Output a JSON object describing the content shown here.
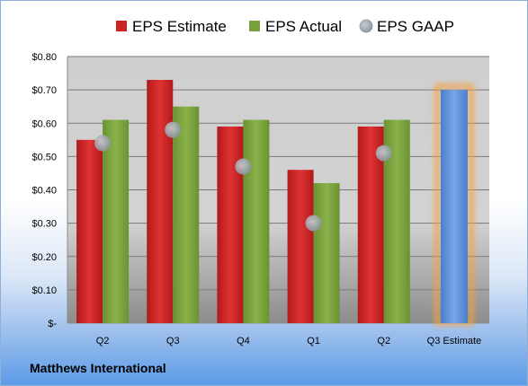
{
  "company_name": "Matthews International",
  "chart_data": {
    "type": "bar",
    "categories": [
      "Q2",
      "Q3",
      "Q4",
      "Q1",
      "Q2",
      "Q3 Estimate"
    ],
    "series": [
      {
        "name": "EPS Estimate",
        "values": [
          0.55,
          0.73,
          0.59,
          0.46,
          0.59,
          null
        ],
        "color": "#cc2222"
      },
      {
        "name": "EPS Actual",
        "values": [
          0.61,
          0.65,
          0.61,
          0.42,
          0.61,
          null
        ],
        "color": "#77a03a"
      },
      {
        "name": "EPS GAAP",
        "type": "scatter",
        "values": [
          0.54,
          0.58,
          0.47,
          0.3,
          0.51,
          null
        ],
        "color": "#9aa3ad"
      },
      {
        "name": "Q3 Estimate",
        "values": [
          null,
          null,
          null,
          null,
          null,
          0.7
        ],
        "color": "#5b8fd8",
        "highlight": "#f5a243"
      }
    ],
    "ylim": [
      0,
      0.8
    ],
    "yticks": [
      "$-",
      "$0.10",
      "$0.20",
      "$0.30",
      "$0.40",
      "$0.50",
      "$0.60",
      "$0.70",
      "$0.80"
    ],
    "legend_position": "top",
    "grid": true,
    "xlabel": "",
    "ylabel": ""
  }
}
